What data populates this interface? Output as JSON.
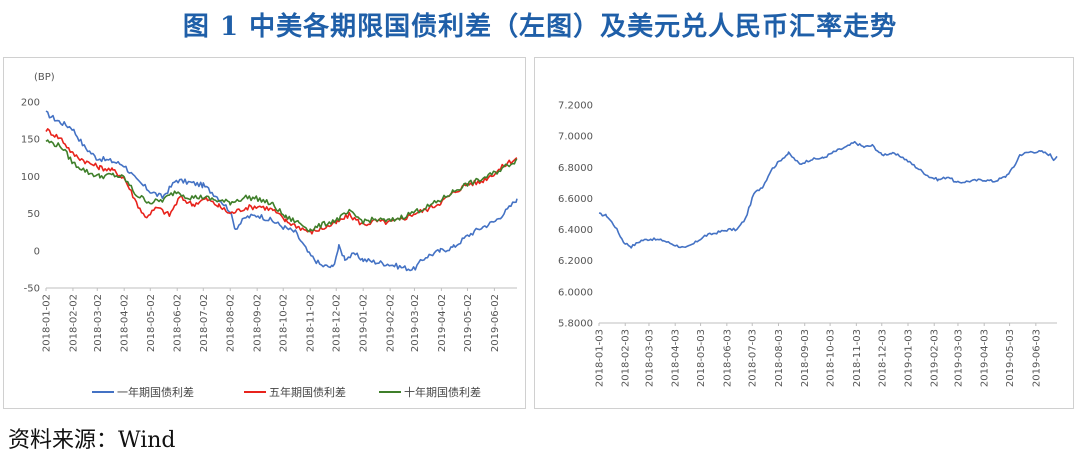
{
  "figure": {
    "title": "图 1 中美各期限国债利差（左图）及美元兑人民币汇率走势",
    "source": "资料来源：Wind"
  },
  "chart_data": [
    {
      "type": "line",
      "panel": "left",
      "unit_label": "(BP)",
      "ylim": [
        -50,
        200
      ],
      "yticks": [
        -50,
        0,
        50,
        100,
        150,
        200
      ],
      "ytick_labels": [
        "-50",
        "0",
        "50",
        "100",
        "150",
        "200"
      ],
      "xlim": [
        "2018-01-02",
        "2019-06-28"
      ],
      "xtick_labels": [
        "2018-01-02",
        "2018-02-02",
        "2018-03-02",
        "2018-04-02",
        "2018-05-02",
        "2018-06-02",
        "2018-07-02",
        "2018-08-02",
        "2018-09-02",
        "2018-10-02",
        "2018-11-02",
        "2018-12-02",
        "2019-01-02",
        "2019-02-02",
        "2019-03-02",
        "2019-04-02",
        "2019-05-02",
        "2019-06-02"
      ],
      "grid": false,
      "legend": "bottom",
      "series": [
        {
          "name": "一年期国债利差",
          "color": "#4472c4",
          "points": [
            [
              "2018-01-02",
              185
            ],
            [
              "2018-01-15",
              175
            ],
            [
              "2018-02-01",
              165
            ],
            [
              "2018-02-15",
              140
            ],
            [
              "2018-03-01",
              125
            ],
            [
              "2018-03-20",
              120
            ],
            [
              "2018-04-02",
              115
            ],
            [
              "2018-04-16",
              95
            ],
            [
              "2018-05-02",
              80
            ],
            [
              "2018-05-16",
              72
            ],
            [
              "2018-06-01",
              95
            ],
            [
              "2018-06-15",
              92
            ],
            [
              "2018-07-02",
              88
            ],
            [
              "2018-07-16",
              75
            ],
            [
              "2018-08-01",
              55
            ],
            [
              "2018-08-08",
              30
            ],
            [
              "2018-08-20",
              45
            ],
            [
              "2018-09-03",
              48
            ],
            [
              "2018-09-20",
              40
            ],
            [
              "2018-10-02",
              32
            ],
            [
              "2018-10-16",
              25
            ],
            [
              "2018-11-01",
              -5
            ],
            [
              "2018-11-15",
              -20
            ],
            [
              "2018-11-28",
              -22
            ],
            [
              "2018-12-05",
              5
            ],
            [
              "2018-12-12",
              -10
            ],
            [
              "2018-12-24",
              -5
            ],
            [
              "2019-01-02",
              -12
            ],
            [
              "2019-01-16",
              -15
            ],
            [
              "2019-02-01",
              -18
            ],
            [
              "2019-02-15",
              -22
            ],
            [
              "2019-03-01",
              -25
            ],
            [
              "2019-03-15",
              -8
            ],
            [
              "2019-04-01",
              0
            ],
            [
              "2019-04-16",
              5
            ],
            [
              "2019-05-02",
              20
            ],
            [
              "2019-05-16",
              30
            ],
            [
              "2019-06-03",
              40
            ],
            [
              "2019-06-17",
              55
            ],
            [
              "2019-06-28",
              70
            ]
          ]
        },
        {
          "name": "五年期国债利差",
          "color": "#e8231c",
          "points": [
            [
              "2018-01-02",
              163
            ],
            [
              "2018-01-20",
              150
            ],
            [
              "2018-02-02",
              130
            ],
            [
              "2018-02-20",
              118
            ],
            [
              "2018-03-05",
              112
            ],
            [
              "2018-03-20",
              108
            ],
            [
              "2018-04-02",
              98
            ],
            [
              "2018-04-16",
              65
            ],
            [
              "2018-04-26",
              45
            ],
            [
              "2018-05-10",
              58
            ],
            [
              "2018-05-24",
              48
            ],
            [
              "2018-06-05",
              72
            ],
            [
              "2018-06-20",
              62
            ],
            [
              "2018-07-05",
              70
            ],
            [
              "2018-07-20",
              60
            ],
            [
              "2018-08-02",
              50
            ],
            [
              "2018-08-20",
              58
            ],
            [
              "2018-09-05",
              60
            ],
            [
              "2018-09-20",
              55
            ],
            [
              "2018-10-05",
              40
            ],
            [
              "2018-10-20",
              32
            ],
            [
              "2018-11-02",
              25
            ],
            [
              "2018-11-16",
              30
            ],
            [
              "2018-12-03",
              38
            ],
            [
              "2018-12-17",
              48
            ],
            [
              "2019-01-02",
              35
            ],
            [
              "2019-01-16",
              40
            ],
            [
              "2019-02-01",
              38
            ],
            [
              "2019-02-15",
              42
            ],
            [
              "2019-03-01",
              50
            ],
            [
              "2019-03-15",
              55
            ],
            [
              "2019-04-01",
              65
            ],
            [
              "2019-04-16",
              78
            ],
            [
              "2019-05-02",
              90
            ],
            [
              "2019-05-16",
              92
            ],
            [
              "2019-06-03",
              105
            ],
            [
              "2019-06-17",
              118
            ],
            [
              "2019-06-28",
              125
            ]
          ]
        },
        {
          "name": "十年期国债利差",
          "color": "#3f7f2a",
          "points": [
            [
              "2018-01-02",
              148
            ],
            [
              "2018-01-20",
              140
            ],
            [
              "2018-02-02",
              118
            ],
            [
              "2018-02-20",
              105
            ],
            [
              "2018-03-05",
              100
            ],
            [
              "2018-03-20",
              102
            ],
            [
              "2018-04-02",
              98
            ],
            [
              "2018-04-16",
              75
            ],
            [
              "2018-05-02",
              65
            ],
            [
              "2018-05-16",
              68
            ],
            [
              "2018-06-01",
              80
            ],
            [
              "2018-06-15",
              72
            ],
            [
              "2018-07-02",
              72
            ],
            [
              "2018-07-16",
              68
            ],
            [
              "2018-08-02",
              65
            ],
            [
              "2018-08-20",
              72
            ],
            [
              "2018-09-03",
              70
            ],
            [
              "2018-09-20",
              62
            ],
            [
              "2018-10-05",
              45
            ],
            [
              "2018-10-20",
              38
            ],
            [
              "2018-11-02",
              28
            ],
            [
              "2018-11-16",
              35
            ],
            [
              "2018-12-03",
              42
            ],
            [
              "2018-12-17",
              52
            ],
            [
              "2019-01-02",
              40
            ],
            [
              "2019-01-16",
              42
            ],
            [
              "2019-02-01",
              40
            ],
            [
              "2019-02-15",
              45
            ],
            [
              "2019-03-01",
              52
            ],
            [
              "2019-03-15",
              58
            ],
            [
              "2019-04-01",
              68
            ],
            [
              "2019-04-16",
              80
            ],
            [
              "2019-05-02",
              90
            ],
            [
              "2019-05-16",
              95
            ],
            [
              "2019-06-03",
              105
            ],
            [
              "2019-06-17",
              115
            ],
            [
              "2019-06-28",
              122
            ]
          ]
        }
      ]
    },
    {
      "type": "line",
      "panel": "right",
      "ylim": [
        5.8,
        7.2
      ],
      "yticks": [
        5.8,
        6.0,
        6.2,
        6.4,
        6.6,
        6.8,
        7.0,
        7.2
      ],
      "ytick_labels": [
        "5.8000",
        "6.0000",
        "6.2000",
        "6.4000",
        "6.6000",
        "6.8000",
        "7.0000",
        "7.2000"
      ],
      "xlim": [
        "2018-01-03",
        "2019-06-28"
      ],
      "xtick_labels": [
        "2018-01-03",
        "2018-02-03",
        "2018-03-03",
        "2018-04-03",
        "2018-05-03",
        "2018-06-03",
        "2018-07-03",
        "2018-08-03",
        "2018-09-03",
        "2018-10-03",
        "2018-11-03",
        "2018-12-03",
        "2019-01-03",
        "2019-02-03",
        "2019-03-03",
        "2019-04-03",
        "2019-05-03",
        "2019-06-03"
      ],
      "grid": false,
      "legend": "none",
      "series": [
        {
          "color": "#4472c4",
          "points": [
            [
              "2018-01-03",
              6.5
            ],
            [
              "2018-01-12",
              6.49
            ],
            [
              "2018-01-22",
              6.42
            ],
            [
              "2018-02-01",
              6.32
            ],
            [
              "2018-02-10",
              6.29
            ],
            [
              "2018-02-22",
              6.33
            ],
            [
              "2018-03-05",
              6.34
            ],
            [
              "2018-03-20",
              6.33
            ],
            [
              "2018-04-03",
              6.3
            ],
            [
              "2018-04-15",
              6.28
            ],
            [
              "2018-04-25",
              6.31
            ],
            [
              "2018-05-08",
              6.36
            ],
            [
              "2018-05-22",
              6.38
            ],
            [
              "2018-06-05",
              6.4
            ],
            [
              "2018-06-15",
              6.4
            ],
            [
              "2018-06-25",
              6.47
            ],
            [
              "2018-07-05",
              6.63
            ],
            [
              "2018-07-16",
              6.68
            ],
            [
              "2018-07-25",
              6.78
            ],
            [
              "2018-08-06",
              6.85
            ],
            [
              "2018-08-15",
              6.89
            ],
            [
              "2018-08-28",
              6.82
            ],
            [
              "2018-09-10",
              6.85
            ],
            [
              "2018-09-25",
              6.86
            ],
            [
              "2018-10-08",
              6.9
            ],
            [
              "2018-10-22",
              6.93
            ],
            [
              "2018-11-01",
              6.96
            ],
            [
              "2018-11-12",
              6.93
            ],
            [
              "2018-11-22",
              6.94
            ],
            [
              "2018-12-03",
              6.88
            ],
            [
              "2018-12-14",
              6.89
            ],
            [
              "2018-12-26",
              6.87
            ],
            [
              "2019-01-08",
              6.82
            ],
            [
              "2019-01-18",
              6.78
            ],
            [
              "2019-01-28",
              6.74
            ],
            [
              "2019-02-08",
              6.72
            ],
            [
              "2019-02-20",
              6.74
            ],
            [
              "2019-03-01",
              6.7
            ],
            [
              "2019-03-15",
              6.71
            ],
            [
              "2019-04-01",
              6.72
            ],
            [
              "2019-04-15",
              6.71
            ],
            [
              "2019-04-28",
              6.74
            ],
            [
              "2019-05-08",
              6.8
            ],
            [
              "2019-05-15",
              6.88
            ],
            [
              "2019-05-28",
              6.9
            ],
            [
              "2019-06-10",
              6.9
            ],
            [
              "2019-06-20",
              6.88
            ],
            [
              "2019-06-24",
              6.85
            ],
            [
              "2019-06-28",
              6.87
            ]
          ]
        }
      ]
    }
  ]
}
